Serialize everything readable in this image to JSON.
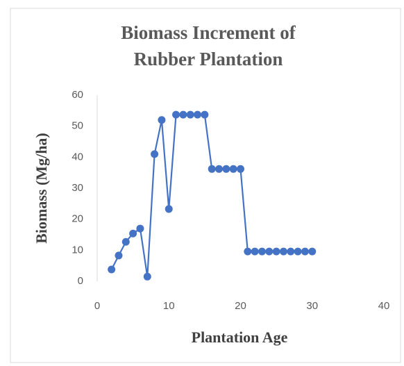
{
  "chart_data": {
    "type": "line",
    "title": [
      "Biomass Increment of",
      "Rubber Plantation"
    ],
    "x_label": "Plantation Age",
    "y_label": "Biomass (Mg/ha)",
    "x": [
      2,
      3,
      4,
      5,
      6,
      7,
      8,
      9,
      10,
      11,
      12,
      13,
      14,
      15,
      16,
      17,
      18,
      19,
      20,
      21,
      22,
      23,
      24,
      25,
      26,
      27,
      28,
      29,
      30
    ],
    "series": [
      {
        "name": "Biomass",
        "color": "#4472c4",
        "values": [
          3.8,
          8.3,
          12.7,
          15.4,
          17,
          1.5,
          41,
          52,
          23.3,
          53.7,
          53.7,
          53.7,
          53.7,
          53.7,
          36.2,
          36.2,
          36.2,
          36.2,
          36.2,
          9.6,
          9.6,
          9.6,
          9.6,
          9.6,
          9.6,
          9.6,
          9.6,
          9.6,
          9.6
        ]
      }
    ],
    "xlim": [
      0,
      40
    ],
    "xticks": [
      0,
      10,
      20,
      30,
      40
    ],
    "ylim": [
      0,
      60
    ],
    "yticks": [
      0,
      10,
      20,
      30,
      40,
      50,
      60
    ],
    "grid": false
  }
}
